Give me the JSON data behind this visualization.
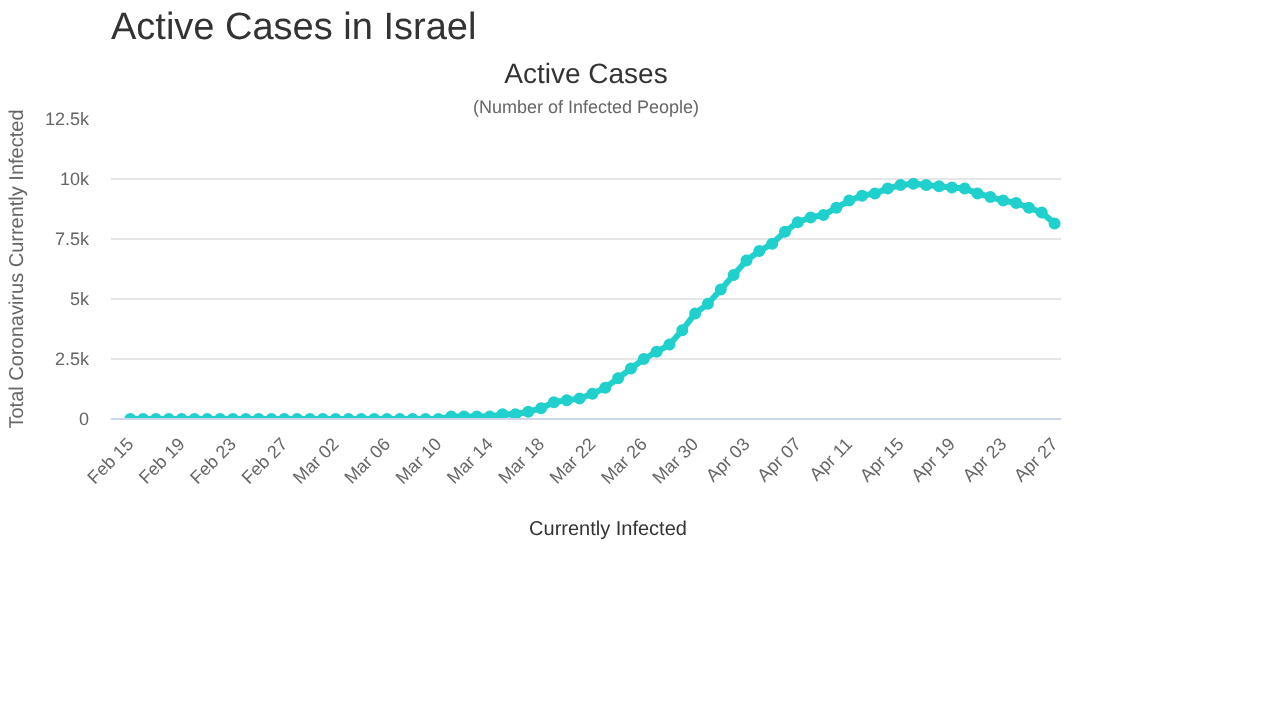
{
  "chart_data": {
    "type": "line",
    "annotations": [
      "Active Cases in Israel"
    ],
    "title": "Active Cases",
    "subtitle": "(Number of Infected People)",
    "ylabel": "Total Coronavirus Currently Infected",
    "categories": [
      "Feb 15",
      null,
      null,
      null,
      "Feb 19",
      null,
      null,
      null,
      "Feb 23",
      null,
      null,
      null,
      "Feb 27",
      null,
      null,
      null,
      "Mar 02",
      null,
      null,
      null,
      "Mar 06",
      null,
      null,
      null,
      "Mar 10",
      null,
      null,
      null,
      "Mar 14",
      null,
      null,
      null,
      "Mar 18",
      null,
      null,
      null,
      "Mar 22",
      null,
      null,
      null,
      "Mar 26",
      null,
      null,
      null,
      "Mar 30",
      null,
      null,
      null,
      "Apr 03",
      null,
      null,
      null,
      "Apr 07",
      null,
      null,
      null,
      "Apr 11",
      null,
      null,
      null,
      "Apr 15",
      null,
      null,
      null,
      "Apr 19",
      null,
      null,
      null,
      "Apr 23",
      null,
      null,
      null,
      "Apr 27"
    ],
    "series": [
      {
        "name": "Currently Infected",
        "color": "#20d0cc",
        "values": [
          0,
          0,
          0,
          0,
          0,
          0,
          0,
          0,
          0,
          0,
          0,
          0,
          0,
          0,
          0,
          0,
          0,
          0,
          0,
          0,
          0,
          0,
          0,
          0,
          0,
          100,
          100,
          100,
          100,
          200,
          200,
          300,
          450,
          700,
          780,
          850,
          1050,
          1300,
          1700,
          2100,
          2500,
          2800,
          3100,
          3700,
          4400,
          4800,
          5400,
          6000,
          6600,
          7000,
          7300,
          7800,
          8200,
          8400,
          8500,
          8800,
          9100,
          9300,
          9400,
          9600,
          9750,
          9800,
          9750,
          9700,
          9650,
          9600,
          9400,
          9250,
          9100,
          9000,
          8800,
          8600,
          8150
        ]
      }
    ],
    "ylim": [
      0,
      12500
    ],
    "yticks": [
      0,
      {
        "value": 2500,
        "label": "2.5k"
      },
      {
        "value": 5000,
        "label": "5k"
      },
      {
        "value": 7500,
        "label": "7.5k"
      },
      {
        "value": 10000,
        "label": "10k"
      },
      {
        "value": 12500,
        "label": "12.5k"
      }
    ],
    "grid": "y",
    "legend": "bottom",
    "marker": "circle",
    "line_style": "solid"
  }
}
